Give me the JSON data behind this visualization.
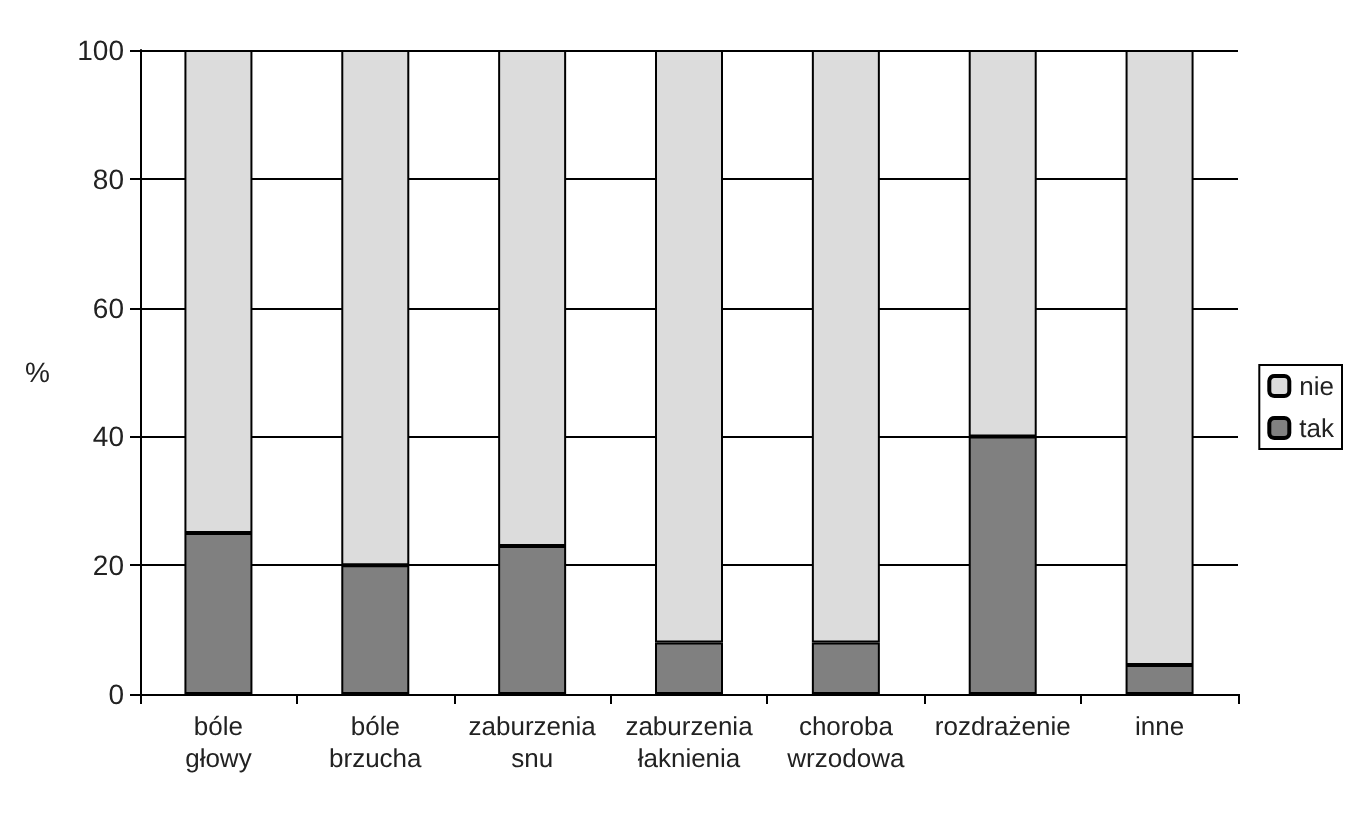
{
  "chart_data": {
    "type": "bar",
    "ylabel": "%",
    "stacked": true,
    "categories": [
      "bóle\ngłowy",
      "bóle\nbrzucha",
      "zaburzenia\nsnu",
      "zaburzenia\nłaknienia",
      "choroba\nwrzodowa",
      "rozdrażenie",
      "inne"
    ],
    "series": [
      {
        "name": "tak",
        "color": "#808080",
        "values": [
          25,
          20,
          23,
          8,
          8,
          40,
          4.5
        ]
      },
      {
        "name": "nie",
        "color": "#dcdcdc",
        "values": [
          75,
          80,
          77,
          92,
          92,
          60,
          95.5
        ]
      }
    ],
    "ylim": [
      0,
      100
    ],
    "yticks": [
      0,
      20,
      40,
      60,
      80,
      100
    ],
    "grid": "y",
    "legend": "right"
  }
}
